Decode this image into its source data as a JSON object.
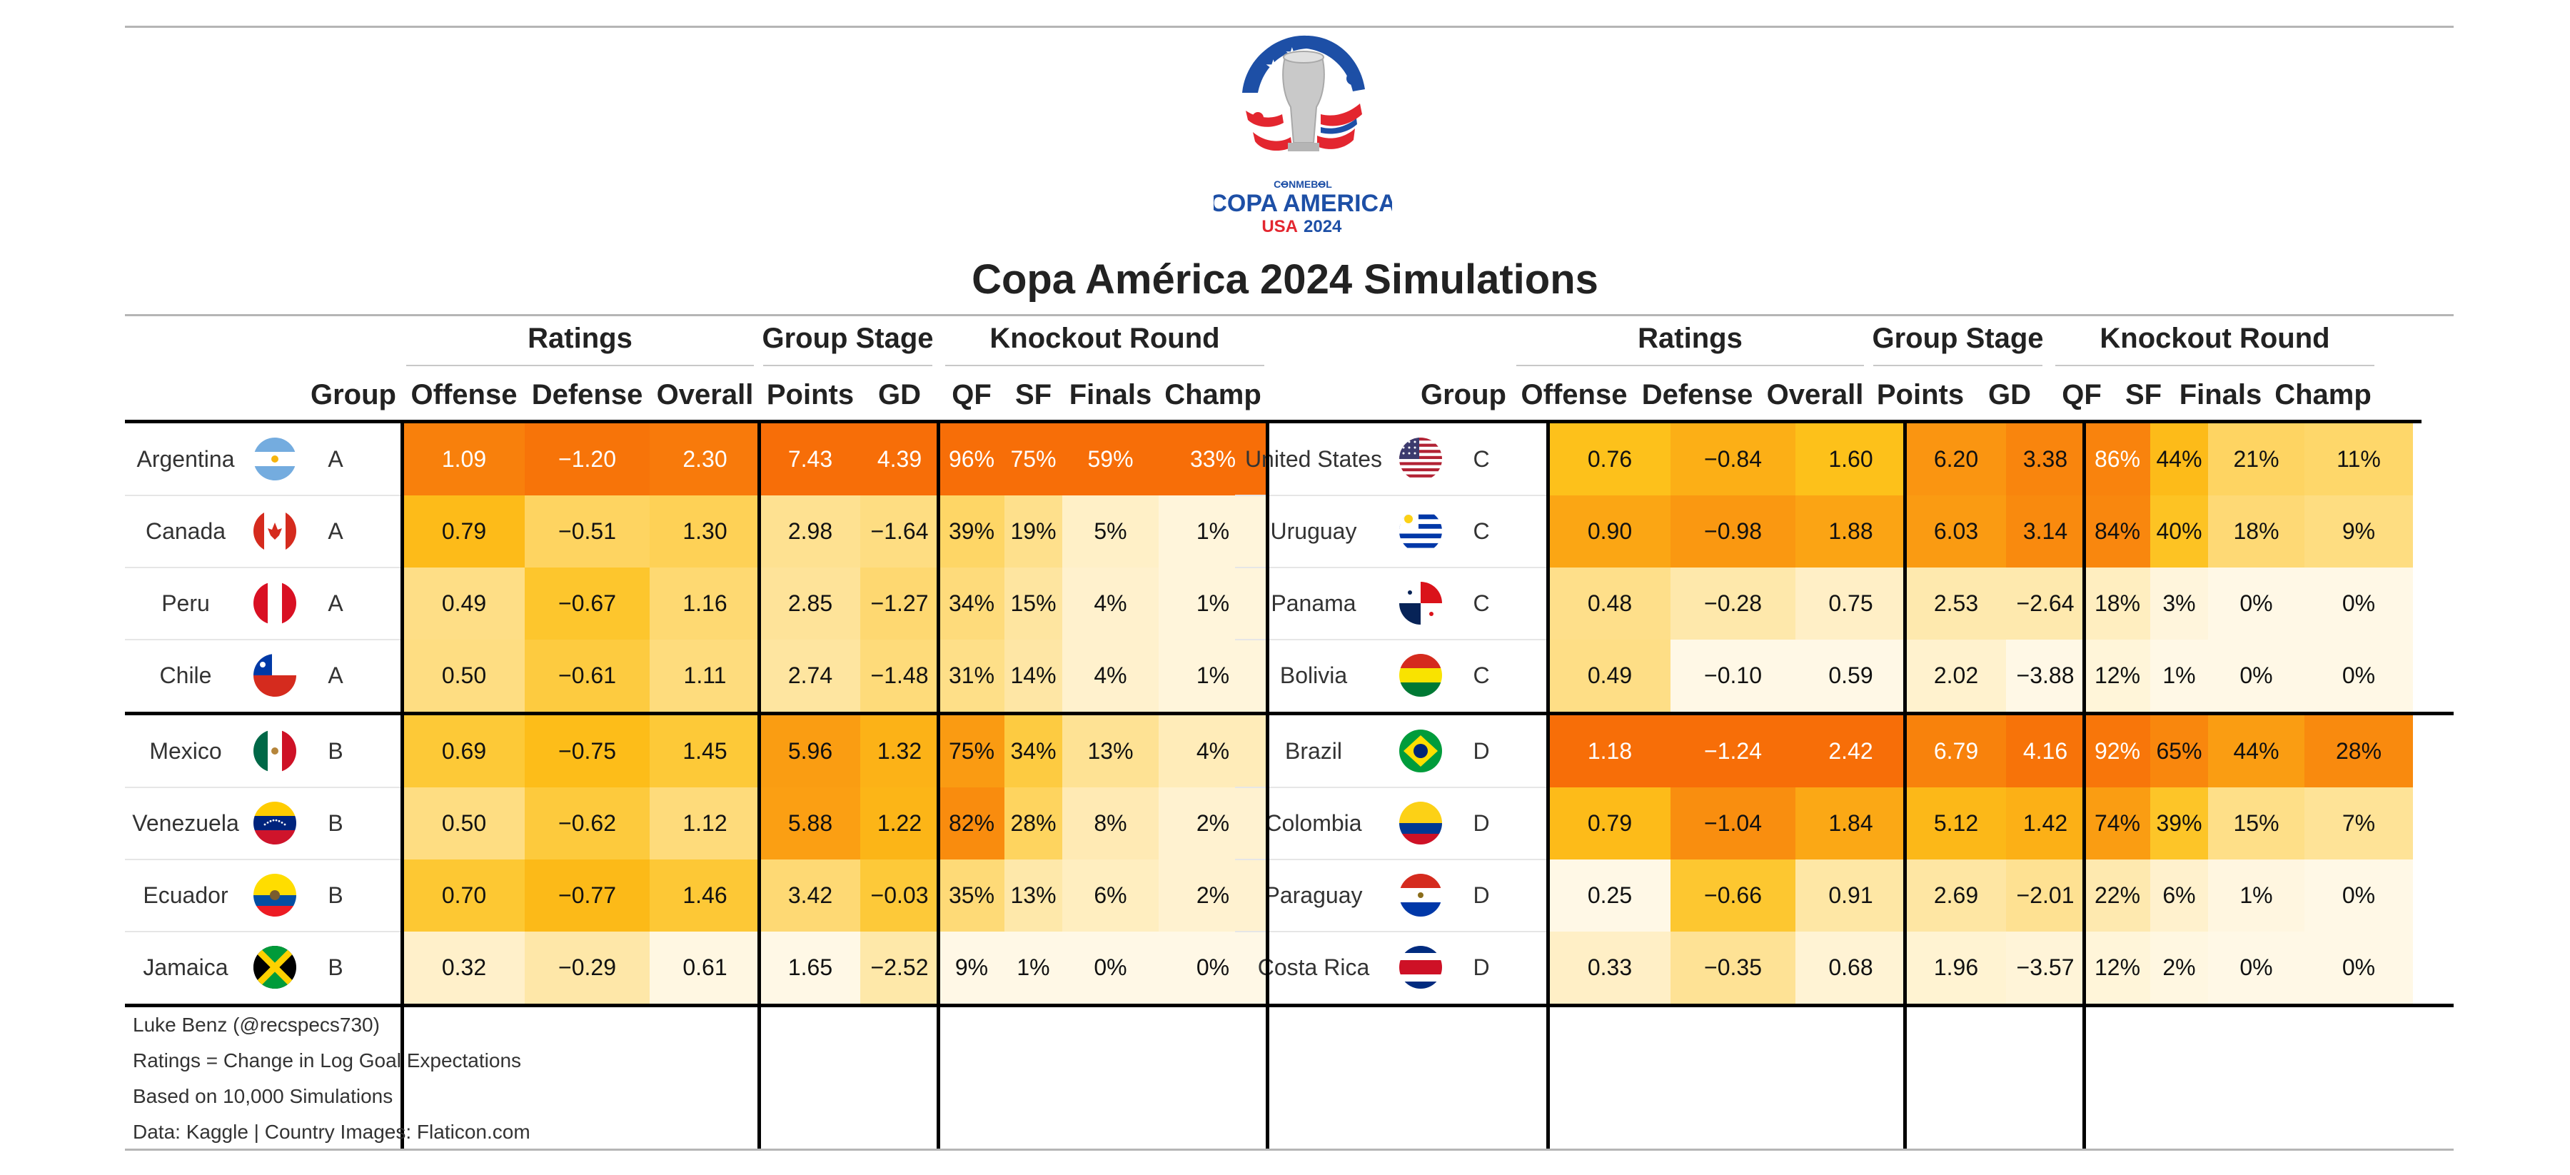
{
  "title": "Copa América 2024 Simulations",
  "logo": {
    "line1": "CONMEBOL",
    "line2": "COPA AMERICA",
    "line3_left": "USA",
    "line3_right": "2024",
    "colors": {
      "blue": "#1d4fa6",
      "red": "#e3262f",
      "silver": "#bdbdbd"
    }
  },
  "spanners": [
    "Ratings",
    "Group Stage",
    "Knockout Round"
  ],
  "columns": [
    "Group",
    "Offense",
    "Defense",
    "Overall",
    "Points",
    "GD",
    "QF",
    "SF",
    "Finals",
    "Champ"
  ],
  "color_scale": {
    "low": "#fff8e6",
    "mid": "#fdc11a",
    "high": "#f76e08"
  },
  "chart_data": {
    "type": "table",
    "title": "Copa América 2024 Simulations",
    "columns": [
      "Team",
      "Group",
      "Offense",
      "Defense",
      "Overall",
      "Points",
      "GD",
      "QF",
      "SF",
      "Finals",
      "Champ"
    ],
    "teams": [
      {
        "team": "Argentina",
        "group": "A",
        "offense": "1.09",
        "defense": "−1.20",
        "overall": "2.30",
        "points": "7.43",
        "gd": "4.39",
        "qf": "96%",
        "sf": "75%",
        "finals": "59%",
        "champ": "33%",
        "flag": "argentina"
      },
      {
        "team": "Canada",
        "group": "A",
        "offense": "0.79",
        "defense": "−0.51",
        "overall": "1.30",
        "points": "2.98",
        "gd": "−1.64",
        "qf": "39%",
        "sf": "19%",
        "finals": "5%",
        "champ": "1%",
        "flag": "canada"
      },
      {
        "team": "Peru",
        "group": "A",
        "offense": "0.49",
        "defense": "−0.67",
        "overall": "1.16",
        "points": "2.85",
        "gd": "−1.27",
        "qf": "34%",
        "sf": "15%",
        "finals": "4%",
        "champ": "1%",
        "flag": "peru"
      },
      {
        "team": "Chile",
        "group": "A",
        "offense": "0.50",
        "defense": "−0.61",
        "overall": "1.11",
        "points": "2.74",
        "gd": "−1.48",
        "qf": "31%",
        "sf": "14%",
        "finals": "4%",
        "champ": "1%",
        "flag": "chile"
      },
      {
        "team": "Mexico",
        "group": "B",
        "offense": "0.69",
        "defense": "−0.75",
        "overall": "1.45",
        "points": "5.96",
        "gd": "1.32",
        "qf": "75%",
        "sf": "34%",
        "finals": "13%",
        "champ": "4%",
        "flag": "mexico"
      },
      {
        "team": "Venezuela",
        "group": "B",
        "offense": "0.50",
        "defense": "−0.62",
        "overall": "1.12",
        "points": "5.88",
        "gd": "1.22",
        "qf": "82%",
        "sf": "28%",
        "finals": "8%",
        "champ": "2%",
        "flag": "venezuela"
      },
      {
        "team": "Ecuador",
        "group": "B",
        "offense": "0.70",
        "defense": "−0.77",
        "overall": "1.46",
        "points": "3.42",
        "gd": "−0.03",
        "qf": "35%",
        "sf": "13%",
        "finals": "6%",
        "champ": "2%",
        "flag": "ecuador"
      },
      {
        "team": "Jamaica",
        "group": "B",
        "offense": "0.32",
        "defense": "−0.29",
        "overall": "0.61",
        "points": "1.65",
        "gd": "−2.52",
        "qf": "9%",
        "sf": "1%",
        "finals": "0%",
        "champ": "0%",
        "flag": "jamaica"
      },
      {
        "team": "United States",
        "group": "C",
        "offense": "0.76",
        "defense": "−0.84",
        "overall": "1.60",
        "points": "6.20",
        "gd": "3.38",
        "qf": "86%",
        "sf": "44%",
        "finals": "21%",
        "champ": "11%",
        "flag": "usa"
      },
      {
        "team": "Uruguay",
        "group": "C",
        "offense": "0.90",
        "defense": "−0.98",
        "overall": "1.88",
        "points": "6.03",
        "gd": "3.14",
        "qf": "84%",
        "sf": "40%",
        "finals": "18%",
        "champ": "9%",
        "flag": "uruguay"
      },
      {
        "team": "Panama",
        "group": "C",
        "offense": "0.48",
        "defense": "−0.28",
        "overall": "0.75",
        "points": "2.53",
        "gd": "−2.64",
        "qf": "18%",
        "sf": "3%",
        "finals": "0%",
        "champ": "0%",
        "flag": "panama"
      },
      {
        "team": "Bolivia",
        "group": "C",
        "offense": "0.49",
        "defense": "−0.10",
        "overall": "0.59",
        "points": "2.02",
        "gd": "−3.88",
        "qf": "12%",
        "sf": "1%",
        "finals": "0%",
        "champ": "0%",
        "flag": "bolivia"
      },
      {
        "team": "Brazil",
        "group": "D",
        "offense": "1.18",
        "defense": "−1.24",
        "overall": "2.42",
        "points": "6.79",
        "gd": "4.16",
        "qf": "92%",
        "sf": "65%",
        "finals": "44%",
        "champ": "28%",
        "flag": "brazil"
      },
      {
        "team": "Colombia",
        "group": "D",
        "offense": "0.79",
        "defense": "−1.04",
        "overall": "1.84",
        "points": "5.12",
        "gd": "1.42",
        "qf": "74%",
        "sf": "39%",
        "finals": "15%",
        "champ": "7%",
        "flag": "colombia"
      },
      {
        "team": "Paraguay",
        "group": "D",
        "offense": "0.25",
        "defense": "−0.66",
        "overall": "0.91",
        "points": "2.69",
        "gd": "−2.01",
        "qf": "22%",
        "sf": "6%",
        "finals": "1%",
        "champ": "0%",
        "flag": "paraguay"
      },
      {
        "team": "Costa Rica",
        "group": "D",
        "offense": "0.33",
        "defense": "−0.35",
        "overall": "0.68",
        "points": "1.96",
        "gd": "−3.57",
        "qf": "12%",
        "sf": "2%",
        "finals": "0%",
        "champ": "0%",
        "flag": "costarica"
      }
    ]
  },
  "footer": [
    "Luke Benz (@recspecs730)",
    "Ratings = Change in Log Goal Expectations",
    "Based on 10,000 Simulations",
    "Data: Kaggle | Country Images: Flaticon.com"
  ]
}
